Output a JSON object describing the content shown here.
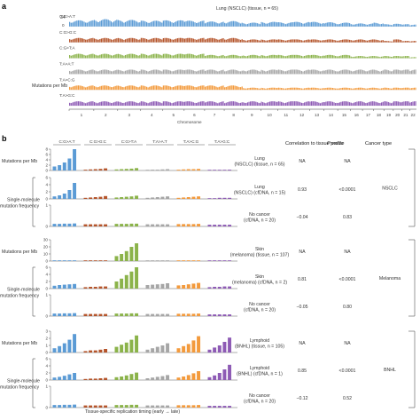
{
  "panel_a": {
    "letter": "a",
    "title": "Lung (NSCLC) (tissue, n = 65)",
    "ylabel": "Mutations per Mb",
    "ymax_label": "34",
    "y_tick_labels": [
      "34",
      "0"
    ],
    "xlabel": "Chromosome",
    "chromosomes": [
      "1",
      "2",
      "3",
      "4",
      "5",
      "6",
      "7",
      "8",
      "9",
      "10",
      "11",
      "12",
      "13",
      "14",
      "15",
      "16",
      "17",
      "18",
      "19",
      "20",
      "21",
      "22"
    ]
  },
  "panel_b": {
    "letter": "b",
    "header_correlation": "Correlation to tissue profile",
    "header_pvalue": "P value",
    "header_cancer": "Cancer type",
    "xlabel": "Tissue-specific replication timing (early → late)",
    "ylabel_tissue": "Mutations per Mb",
    "ylabel_cfdna": "Single-molecule mutation frequency",
    "groups": [
      {
        "cancer_type": "NSCLC",
        "rows": [
          {
            "label": "Lung (NSCLC) (tissue, n = 65)",
            "correlation": "NA",
            "p_value": "NA"
          },
          {
            "label": "Lung (NSCLC) (cfDNA, n = 15)",
            "correlation": "0.93",
            "p_value": "<0.0001"
          },
          {
            "label": "No cancer (cfDNA, n = 20)",
            "correlation": "−0.04",
            "p_value": "0.83"
          }
        ]
      },
      {
        "cancer_type": "Melanoma",
        "rows": [
          {
            "label": "Skin (melanoma) (tissue, n = 107)",
            "correlation": "NA",
            "p_value": "NA"
          },
          {
            "label": "Skin (melanoma) (cfDNA, n = 2)",
            "correlation": "0.81",
            "p_value": "<0.0001"
          },
          {
            "label": "No cancer (cfDNA, n = 20)",
            "correlation": "−0.05",
            "p_value": "0.80"
          }
        ]
      },
      {
        "cancer_type": "BNHL",
        "rows": [
          {
            "label": "Lymphoid (BNHL) (tissue, n = 105)",
            "correlation": "NA",
            "p_value": "NA"
          },
          {
            "label": "Lymphoid (BNHL) (cfDNA, n = 1)",
            "correlation": "0.85",
            "p_value": "<0.0001"
          },
          {
            "label": "No cancer (cfDNA, n = 20)",
            "correlation": "−0.12",
            "p_value": "0.52"
          }
        ]
      }
    ]
  },
  "chart_data": [
    {
      "type": "bar",
      "panel": "a",
      "title": "Lung (NSCLC) (tissue, n = 65)",
      "xlabel": "Chromosome",
      "ylabel": "Mutations per Mb",
      "ylim": [
        0,
        34
      ],
      "categories": [
        "1",
        "2",
        "3",
        "4",
        "5",
        "6",
        "7",
        "8",
        "9",
        "10",
        "11",
        "12",
        "13",
        "14",
        "15",
        "16",
        "17",
        "18",
        "19",
        "20",
        "21",
        "22"
      ],
      "series": [
        {
          "name": "C:G>A:T",
          "color": "#5b9bd5",
          "values": [
            16,
            19,
            17,
            15,
            16,
            15,
            13,
            14,
            10,
            12,
            11,
            12,
            12,
            11,
            10,
            8,
            8,
            10,
            6,
            7,
            6,
            5
          ]
        },
        {
          "name": "C:G>G:C",
          "color": "#b5542a",
          "values": [
            3,
            3,
            3,
            3,
            3,
            3,
            3,
            3,
            2,
            2,
            2,
            2,
            2,
            2,
            2,
            2,
            2,
            2,
            1,
            2,
            1,
            1
          ]
        },
        {
          "name": "C:G>T:A",
          "color": "#8bb34a",
          "values": [
            4,
            4,
            4,
            4,
            4,
            4,
            3,
            3,
            3,
            3,
            3,
            3,
            3,
            3,
            3,
            2,
            2,
            2,
            2,
            2,
            2,
            1
          ]
        },
        {
          "name": "T:A>A:T",
          "color": "#a6a6a6",
          "values": [
            1,
            1,
            1,
            1,
            1,
            1,
            1,
            1,
            1,
            1,
            1,
            1,
            1,
            1,
            1,
            1,
            1,
            1,
            1,
            1,
            1,
            1
          ]
        },
        {
          "name": "T:A>C:G",
          "color": "#f39a3c",
          "values": [
            2,
            2,
            2,
            2,
            2,
            2,
            2,
            2,
            1,
            1,
            1,
            1,
            1,
            1,
            1,
            1,
            1,
            1,
            1,
            1,
            1,
            1
          ]
        },
        {
          "name": "T:A>G:C",
          "color": "#8e5bb5",
          "values": [
            1,
            1,
            1,
            1,
            1,
            1,
            1,
            1,
            1,
            1,
            1,
            1,
            1,
            1,
            1,
            1,
            1,
            1,
            1,
            1,
            1,
            1
          ]
        }
      ]
    },
    {
      "type": "bar",
      "panel": "b",
      "xlabel": "Tissue-specific replication timing (early → late)",
      "categories": [
        "C:G>A:T",
        "C:G>G:C",
        "C:G>T:A",
        "T:A>A:T",
        "T:A>C:G",
        "T:A>G:C"
      ],
      "category_colors": [
        "#5b9bd5",
        "#b5542a",
        "#8bb34a",
        "#a6a6a6",
        "#f39a3c",
        "#8e5bb5"
      ],
      "bins_per_category": 5,
      "rows": [
        {
          "label": "Lung (NSCLC) (tissue, n = 65)",
          "ylim": [
            0,
            8
          ],
          "y_ticks": [
            0,
            2,
            4,
            6,
            8
          ],
          "values": [
            [
              1.5,
              2.0,
              3.0,
              4.5,
              8.0
            ],
            [
              0.3,
              0.4,
              0.5,
              0.6,
              0.8
            ],
            [
              0.4,
              0.5,
              0.6,
              0.7,
              0.9
            ],
            [
              0.2,
              0.3,
              0.3,
              0.4,
              0.5
            ],
            [
              0.3,
              0.4,
              0.5,
              0.5,
              0.6
            ],
            [
              0.1,
              0.2,
              0.2,
              0.2,
              0.3
            ]
          ]
        },
        {
          "label": "Lung (NSCLC) (cfDNA, n = 15)",
          "y_ticks": [
            0,
            2,
            4,
            6
          ],
          "values": [
            [
              0.7,
              1.0,
              1.5,
              2.5,
              4.5
            ],
            [
              0.3,
              0.4,
              0.5,
              0.6,
              0.8
            ],
            [
              0.4,
              0.5,
              0.6,
              0.7,
              0.9
            ],
            [
              0.3,
              0.4,
              0.5,
              0.6,
              0.7
            ],
            [
              0.3,
              0.4,
              0.5,
              0.6,
              0.7
            ],
            [
              0.2,
              0.2,
              0.3,
              0.3,
              0.3
            ]
          ]
        },
        {
          "label": "No cancer (cfDNA, n = 20)",
          "y_ticks": [
            0,
            1
          ],
          "values": [
            [
              0.12,
              0.12,
              0.13,
              0.13,
              0.14
            ],
            [
              0.1,
              0.1,
              0.1,
              0.1,
              0.1
            ],
            [
              0.12,
              0.12,
              0.12,
              0.13,
              0.13
            ],
            [
              0.1,
              0.1,
              0.1,
              0.1,
              0.1
            ],
            [
              0.11,
              0.11,
              0.11,
              0.11,
              0.12
            ],
            [
              0.08,
              0.08,
              0.08,
              0.08,
              0.08
            ]
          ]
        },
        {
          "label": "Skin (melanoma) (tissue, n = 107)",
          "ylim": [
            0,
            30
          ],
          "y_ticks": [
            0,
            10,
            20,
            30
          ],
          "values": [
            [
              0.5,
              0.6,
              0.7,
              0.8,
              0.9
            ],
            [
              0.3,
              0.3,
              0.3,
              0.4,
              0.4
            ],
            [
              7,
              10,
              14,
              20,
              25
            ],
            [
              0.5,
              0.6,
              0.7,
              0.8,
              0.9
            ],
            [
              0.4,
              0.5,
              0.6,
              0.7,
              0.8
            ],
            [
              0.2,
              0.2,
              0.3,
              0.3,
              0.3
            ]
          ]
        },
        {
          "label": "Skin (melanoma) (cfDNA, n = 2)",
          "y_ticks": [
            0,
            2,
            4,
            6
          ],
          "values": [
            [
              0.8,
              1.0,
              1.1,
              1.2,
              1.3
            ],
            [
              0.4,
              0.5,
              0.5,
              0.6,
              0.6
            ],
            [
              2.0,
              2.8,
              3.8,
              4.8,
              6.0
            ],
            [
              1.0,
              1.1,
              1.2,
              1.3,
              1.5
            ],
            [
              0.9,
              1.0,
              1.2,
              1.4,
              1.6
            ],
            [
              0.4,
              0.5,
              0.5,
              0.6,
              0.6
            ]
          ]
        },
        {
          "label": "No cancer (cfDNA, n = 20)",
          "y_ticks": [
            0,
            1
          ],
          "values": [
            [
              0.12,
              0.12,
              0.13,
              0.13,
              0.14
            ],
            [
              0.1,
              0.1,
              0.1,
              0.1,
              0.1
            ],
            [
              0.12,
              0.12,
              0.12,
              0.13,
              0.13
            ],
            [
              0.1,
              0.1,
              0.1,
              0.1,
              0.1
            ],
            [
              0.11,
              0.11,
              0.11,
              0.11,
              0.12
            ],
            [
              0.08,
              0.08,
              0.08,
              0.08,
              0.08
            ]
          ]
        },
        {
          "label": "Lymphoid (BNHL) (tissue, n = 105)",
          "y_ticks": [
            0,
            1,
            2,
            3
          ],
          "values": [
            [
              0.6,
              0.9,
              1.3,
              1.8,
              2.6
            ],
            [
              0.2,
              0.3,
              0.3,
              0.4,
              0.5
            ],
            [
              0.8,
              1.1,
              1.4,
              1.8,
              2.4
            ],
            [
              0.4,
              0.6,
              0.8,
              1.0,
              1.3
            ],
            [
              0.6,
              0.9,
              1.2,
              1.7,
              2.3
            ],
            [
              0.4,
              0.7,
              1.0,
              1.5,
              2.1
            ]
          ]
        },
        {
          "label": "Lymphoid (BNHL) (cfDNA, n = 1)",
          "y_ticks": [
            0,
            2,
            4,
            6
          ],
          "values": [
            [
              0.7,
              0.9,
              1.2,
              1.6,
              2.0
            ],
            [
              0.3,
              0.4,
              0.4,
              0.5,
              0.6
            ],
            [
              0.8,
              1.0,
              1.3,
              1.7,
              2.1
            ],
            [
              0.5,
              0.7,
              0.9,
              1.1,
              1.4
            ],
            [
              0.7,
              1.0,
              1.4,
              1.9,
              2.5
            ],
            [
              0.8,
              1.3,
              2.0,
              3.0,
              4.3
            ]
          ]
        },
        {
          "label": "No cancer (cfDNA, n = 20)",
          "y_ticks": [
            0,
            1
          ],
          "values": [
            [
              0.12,
              0.12,
              0.13,
              0.13,
              0.14
            ],
            [
              0.1,
              0.1,
              0.1,
              0.1,
              0.1
            ],
            [
              0.12,
              0.12,
              0.12,
              0.13,
              0.13
            ],
            [
              0.1,
              0.1,
              0.1,
              0.1,
              0.1
            ],
            [
              0.11,
              0.11,
              0.11,
              0.11,
              0.12
            ],
            [
              0.08,
              0.08,
              0.08,
              0.08,
              0.08
            ]
          ]
        }
      ]
    }
  ]
}
